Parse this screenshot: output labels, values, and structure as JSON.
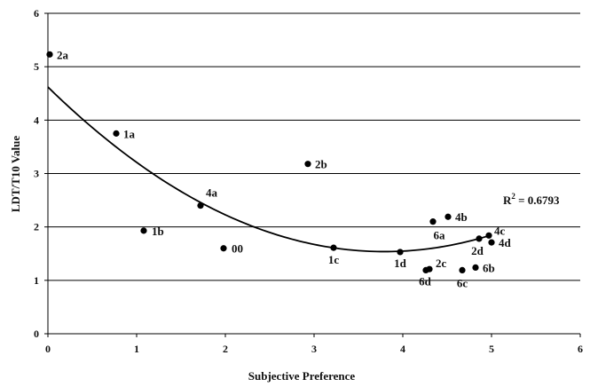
{
  "chart_data": {
    "type": "scatter",
    "xlabel": "Subjective Preference",
    "ylabel": "LDT/T10 Value",
    "xlim": [
      0,
      6
    ],
    "ylim": [
      0,
      6
    ],
    "xticks": [
      "0",
      "1",
      "2",
      "3",
      "4",
      "5",
      "6"
    ],
    "yticks": [
      "0",
      "1",
      "2",
      "3",
      "4",
      "5",
      "6"
    ],
    "grid": "horizontal",
    "legend": "none",
    "points": [
      {
        "label": "2a",
        "x": 0.02,
        "y": 5.23
      },
      {
        "label": "1a",
        "x": 0.77,
        "y": 3.75
      },
      {
        "label": "1b",
        "x": 1.08,
        "y": 1.93
      },
      {
        "label": "4a",
        "x": 1.72,
        "y": 2.4
      },
      {
        "label": "00",
        "x": 1.98,
        "y": 1.6
      },
      {
        "label": "2b",
        "x": 2.93,
        "y": 3.18
      },
      {
        "label": "1c",
        "x": 3.22,
        "y": 1.61
      },
      {
        "label": "1d",
        "x": 3.97,
        "y": 1.53
      },
      {
        "label": "6d",
        "x": 4.26,
        "y": 1.19
      },
      {
        "label": "2c",
        "x": 4.3,
        "y": 1.21
      },
      {
        "label": "6a",
        "x": 4.34,
        "y": 2.1
      },
      {
        "label": "4b",
        "x": 4.51,
        "y": 2.19
      },
      {
        "label": "6c",
        "x": 4.67,
        "y": 1.19
      },
      {
        "label": "6b",
        "x": 4.82,
        "y": 1.24
      },
      {
        "label": "2d",
        "x": 4.86,
        "y": 1.78
      },
      {
        "label": "4c",
        "x": 4.97,
        "y": 1.84
      },
      {
        "label": "4d",
        "x": 5.0,
        "y": 1.71
      }
    ],
    "trendline": {
      "type": "polynomial",
      "coefficients": [
        4.62,
        -1.625,
        0.2142
      ],
      "x_range": [
        0,
        5
      ]
    },
    "annotation": {
      "prefix": "R",
      "superscript": "2",
      "suffix": " = 0.6793"
    },
    "colors": {
      "points": "#000000",
      "grid": "#000000",
      "trend": "#000000"
    }
  }
}
